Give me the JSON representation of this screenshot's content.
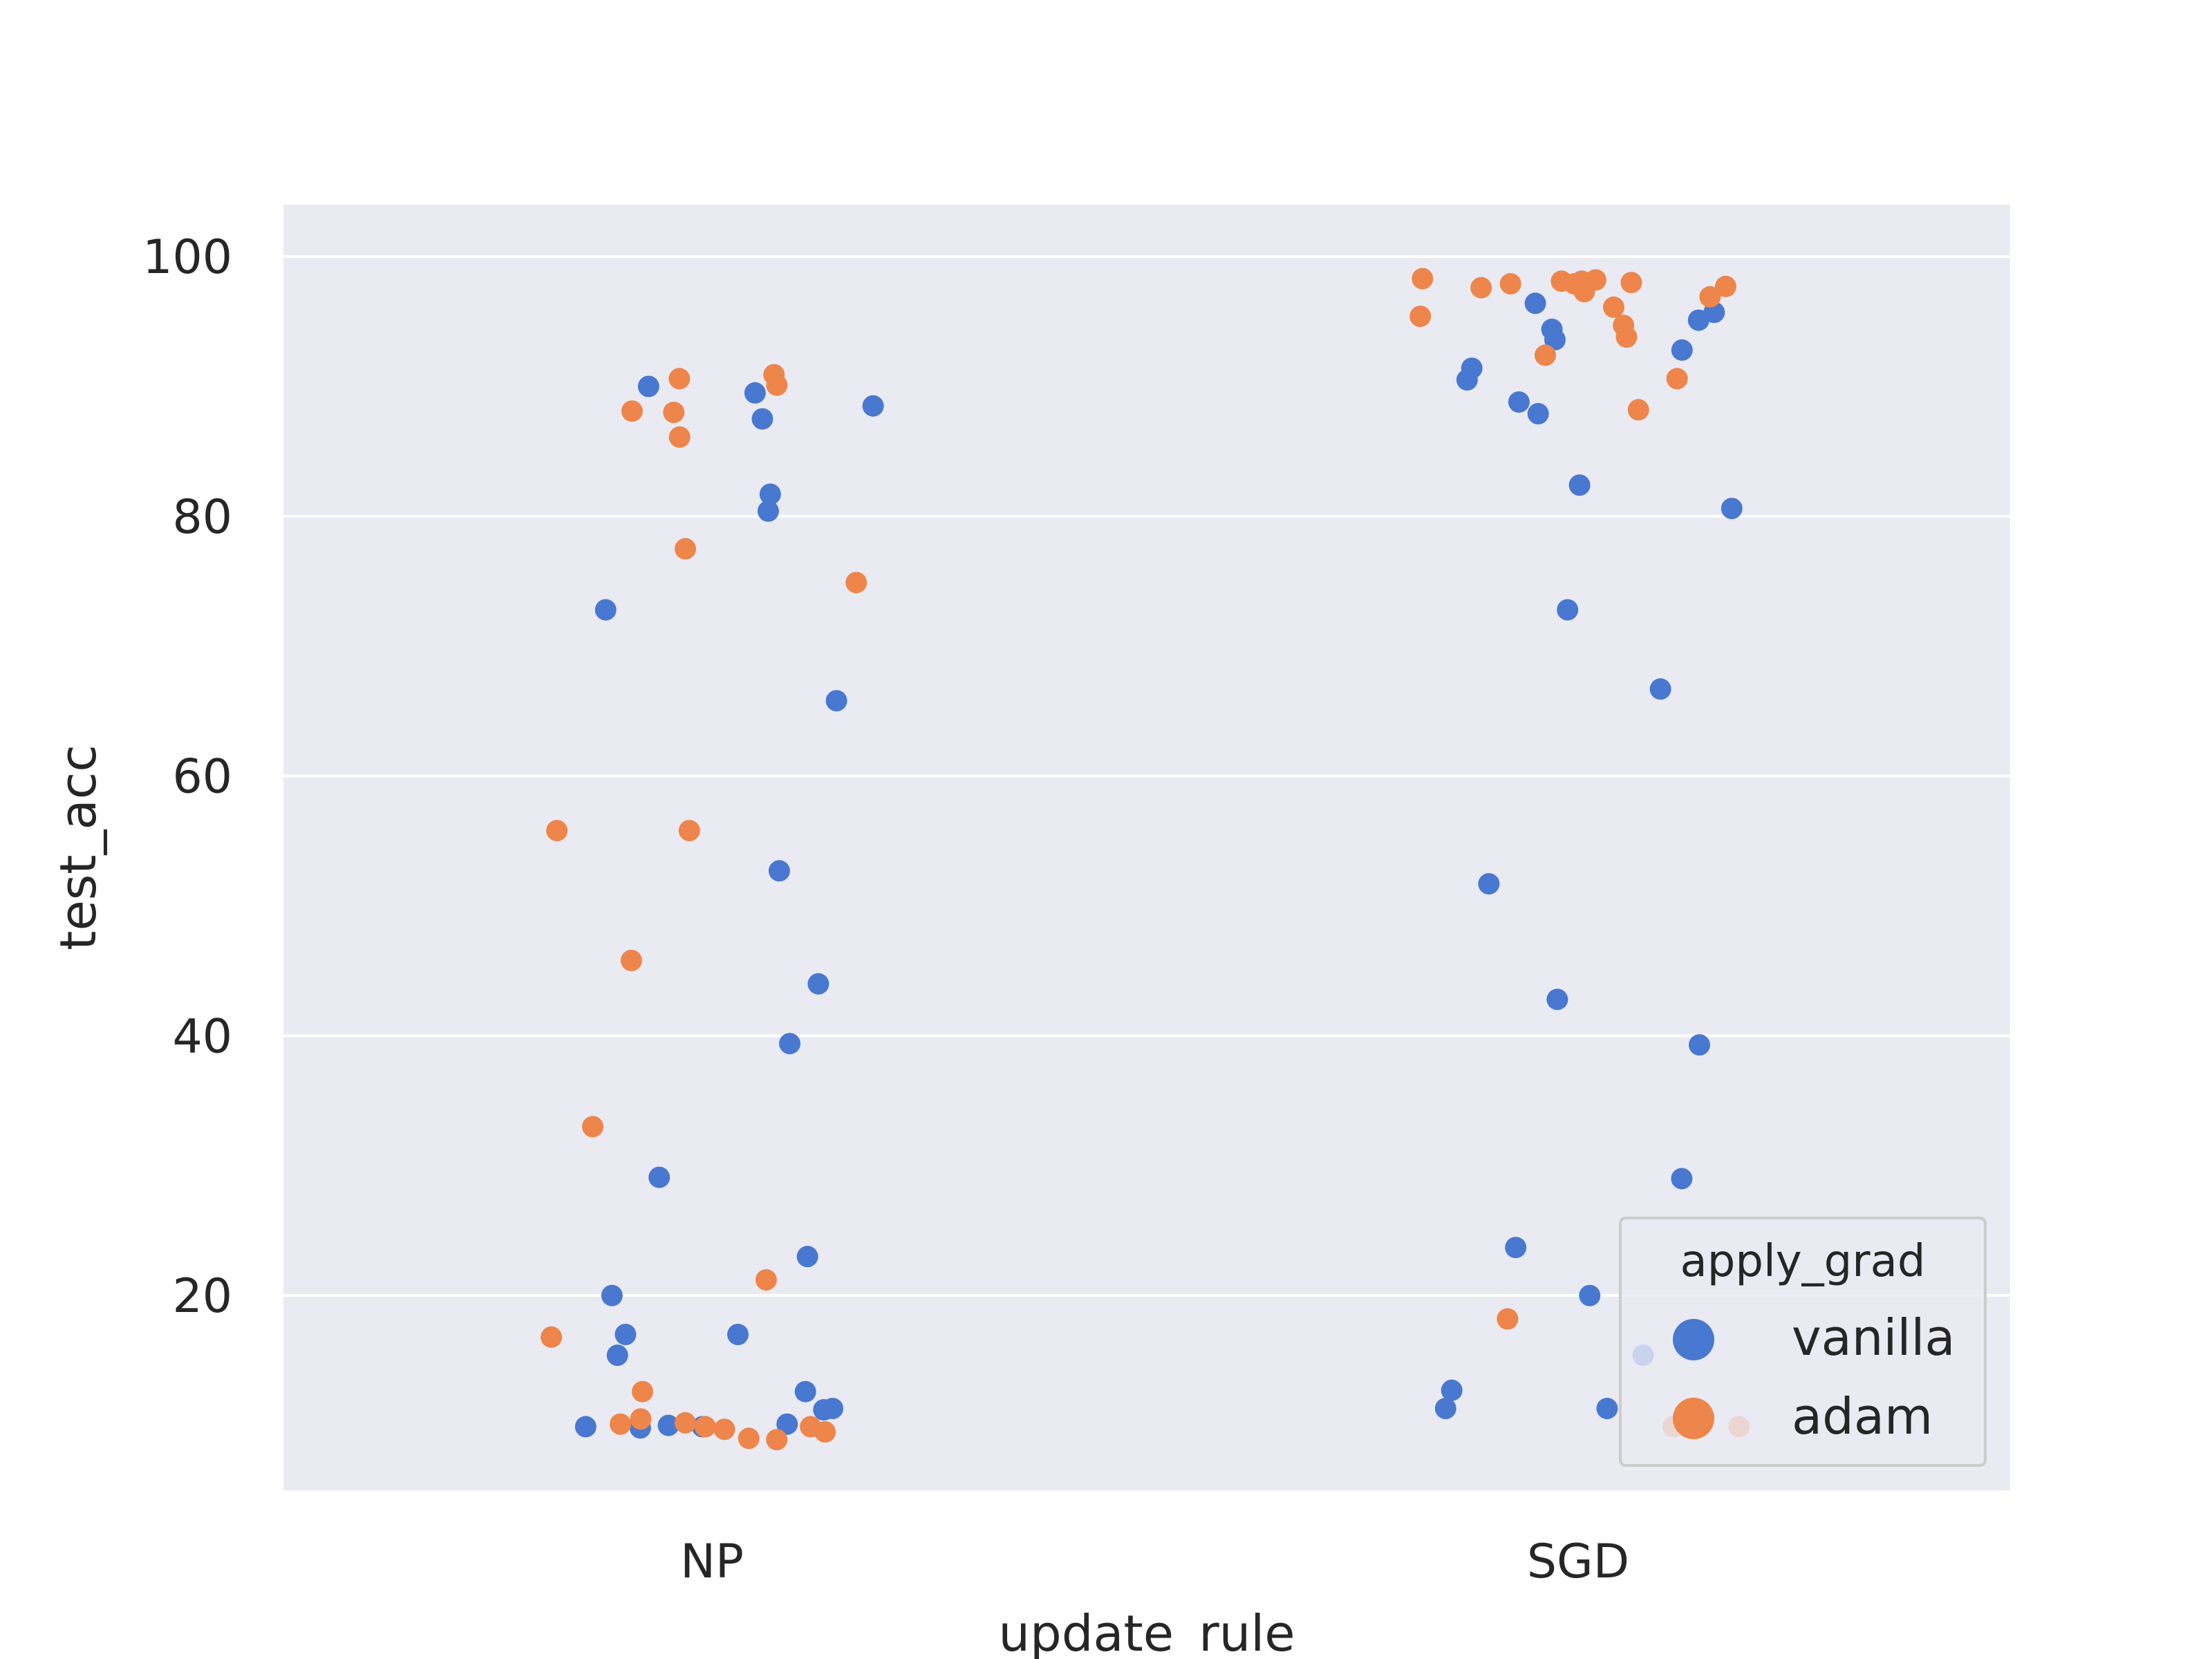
{
  "chart_data": {
    "type": "scatter",
    "xlabel": "update_rule",
    "ylabel": "test_acc",
    "categories": [
      "NP",
      "SGD"
    ],
    "yticks": [
      20,
      40,
      60,
      80,
      100
    ],
    "ylim": [
      5,
      104
    ],
    "grid": true,
    "legend_position": "lower right",
    "legend_title": "apply_grad",
    "series": [
      {
        "name": "vanilla",
        "color": "#4878d0",
        "points": [
          {
            "x": "NP",
            "y": 87.5
          },
          {
            "x": "NP",
            "y": 90.0
          },
          {
            "x": "NP",
            "y": 89.5
          },
          {
            "x": "NP",
            "y": 88.5
          },
          {
            "x": "NP",
            "y": 81.7
          },
          {
            "x": "NP",
            "y": 80.4
          },
          {
            "x": "NP",
            "y": 72.8
          },
          {
            "x": "NP",
            "y": 65.8
          },
          {
            "x": "NP",
            "y": 52.7
          },
          {
            "x": "NP",
            "y": 44.0
          },
          {
            "x": "NP",
            "y": 39.4
          },
          {
            "x": "NP",
            "y": 29.1
          },
          {
            "x": "NP",
            "y": 23.0
          },
          {
            "x": "NP",
            "y": 20.0
          },
          {
            "x": "NP",
            "y": 17.0
          },
          {
            "x": "NP",
            "y": 17.0
          },
          {
            "x": "NP",
            "y": 15.4
          },
          {
            "x": "NP",
            "y": 12.6
          },
          {
            "x": "NP",
            "y": 11.3
          },
          {
            "x": "NP",
            "y": 11.2
          },
          {
            "x": "NP",
            "y": 9.9
          },
          {
            "x": "NP",
            "y": 9.9
          },
          {
            "x": "NP",
            "y": 10.1
          },
          {
            "x": "NP",
            "y": 10.0
          },
          {
            "x": "NP",
            "y": 9.8
          },
          {
            "x": "SGD",
            "y": 96.4
          },
          {
            "x": "SGD",
            "y": 95.7
          },
          {
            "x": "SGD",
            "y": 95.1
          },
          {
            "x": "SGD",
            "y": 94.4
          },
          {
            "x": "SGD",
            "y": 93.6
          },
          {
            "x": "SGD",
            "y": 92.8
          },
          {
            "x": "SGD",
            "y": 91.4
          },
          {
            "x": "SGD",
            "y": 90.5
          },
          {
            "x": "SGD",
            "y": 88.8
          },
          {
            "x": "SGD",
            "y": 87.9
          },
          {
            "x": "SGD",
            "y": 82.4
          },
          {
            "x": "SGD",
            "y": 80.6
          },
          {
            "x": "SGD",
            "y": 72.8
          },
          {
            "x": "SGD",
            "y": 66.7
          },
          {
            "x": "SGD",
            "y": 51.7
          },
          {
            "x": "SGD",
            "y": 42.8
          },
          {
            "x": "SGD",
            "y": 39.3
          },
          {
            "x": "SGD",
            "y": 29.0
          },
          {
            "x": "SGD",
            "y": 23.7
          },
          {
            "x": "SGD",
            "y": 20.0
          },
          {
            "x": "SGD",
            "y": 16.7
          },
          {
            "x": "SGD",
            "y": 15.4
          },
          {
            "x": "SGD",
            "y": 12.7
          },
          {
            "x": "SGD",
            "y": 11.3
          },
          {
            "x": "SGD",
            "y": 11.3
          }
        ]
      },
      {
        "name": "adam",
        "color": "#ee854a",
        "points": [
          {
            "x": "NP",
            "y": 90.9
          },
          {
            "x": "NP",
            "y": 90.6
          },
          {
            "x": "NP",
            "y": 90.1
          },
          {
            "x": "NP",
            "y": 88.1
          },
          {
            "x": "NP",
            "y": 88.0
          },
          {
            "x": "NP",
            "y": 86.1
          },
          {
            "x": "NP",
            "y": 77.5
          },
          {
            "x": "NP",
            "y": 74.9
          },
          {
            "x": "NP",
            "y": 55.8
          },
          {
            "x": "NP",
            "y": 55.8
          },
          {
            "x": "NP",
            "y": 45.8
          },
          {
            "x": "NP",
            "y": 33.0
          },
          {
            "x": "NP",
            "y": 21.2
          },
          {
            "x": "NP",
            "y": 16.8
          },
          {
            "x": "NP",
            "y": 12.6
          },
          {
            "x": "NP",
            "y": 10.5
          },
          {
            "x": "NP",
            "y": 10.2
          },
          {
            "x": "NP",
            "y": 10.1
          },
          {
            "x": "NP",
            "y": 9.9
          },
          {
            "x": "NP",
            "y": 9.9
          },
          {
            "x": "NP",
            "y": 9.7
          },
          {
            "x": "NP",
            "y": 9.5
          },
          {
            "x": "NP",
            "y": 9.0
          },
          {
            "x": "NP",
            "y": 8.9
          },
          {
            "x": "SGD",
            "y": 98.3
          },
          {
            "x": "SGD",
            "y": 98.2
          },
          {
            "x": "SGD",
            "y": 98.1
          },
          {
            "x": "SGD",
            "y": 98.1
          },
          {
            "x": "SGD",
            "y": 98.0
          },
          {
            "x": "SGD",
            "y": 97.9
          },
          {
            "x": "SGD",
            "y": 97.9
          },
          {
            "x": "SGD",
            "y": 97.7
          },
          {
            "x": "SGD",
            "y": 97.6
          },
          {
            "x": "SGD",
            "y": 97.3
          },
          {
            "x": "SGD",
            "y": 96.9
          },
          {
            "x": "SGD",
            "y": 96.1
          },
          {
            "x": "SGD",
            "y": 95.4
          },
          {
            "x": "SGD",
            "y": 94.7
          },
          {
            "x": "SGD",
            "y": 93.8
          },
          {
            "x": "SGD",
            "y": 92.4
          },
          {
            "x": "SGD",
            "y": 90.6
          },
          {
            "x": "SGD",
            "y": 88.2
          },
          {
            "x": "SGD",
            "y": 18.2
          },
          {
            "x": "SGD",
            "y": 9.9
          },
          {
            "x": "SGD",
            "y": 9.9
          }
        ]
      }
    ]
  }
}
